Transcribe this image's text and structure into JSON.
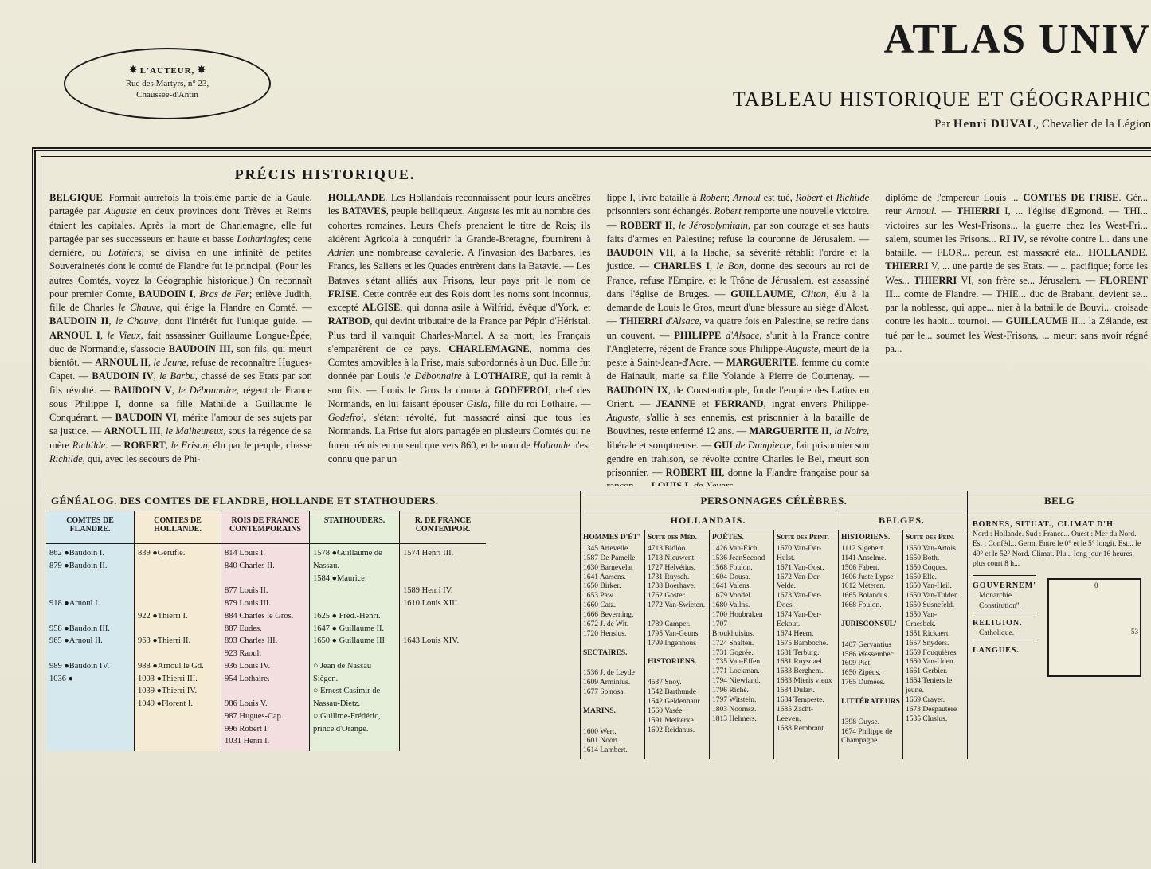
{
  "cartouche": {
    "line1": "L'AUTEUR,",
    "line2": "Rue des Martyrs, n° 23,",
    "line3": "Chaussée-d'Antin"
  },
  "main_title": "ATLAS UNIV",
  "subtitle": "TABLEAU HISTORIQUE ET GÉOGRAPHIC",
  "author_prefix": "Par ",
  "author_name": "Henri DUVAL",
  "author_suffix": ", Chevalier de la Légion",
  "precis_title": "PRÉCIS HISTORIQUE.",
  "col1": "BELGIQUE. Formait autrefois la troisième partie de la Gaule, partagée par Auguste en deux provinces dont Trèves et Reims étaient les capitales. Après la mort de Charlemagne, elle fut partagée par ses successeurs en haute et basse Lotharingies; cette dernière, ou Lothiers, se divisa en une infinité de petites Souverainetés dont le comté de Flandre fut le principal. (Pour les autres Comtés, voyez la Géographie historique.) On reconnaît pour premier Comte, BAUDOIN I, Bras de Fer; enlève Judith, fille de Charles le Chauve, qui érige la Flandre en Comté. — BAUDOIN II, le Chauve, dont l'intérêt fut l'unique guide. — ARNOUL I, le Vieux, fait assassiner Guillaume Longue-Épée, duc de Normandie, s'associe BAUDOIN III, son fils, qui meurt bientôt. — ARNOUL II, le Jeune, refuse de reconnaître Hugues-Capet. — BAUDOIN IV, le Barbu, chassé de ses Etats par son fils révolté. — BAUDOIN V, le Débonnaire, régent de France sous Philippe I, donne sa fille Mathilde à Guillaume le Conquérant. — BAUDOIN VI, mérite l'amour de ses sujets par sa justice. — ARNOUL III, le Malheureux, sous la régence de sa mère Richilde. — ROBERT, le Frison, élu par le peuple, chasse Richilde, qui, avec les secours de Phi-",
  "col2": "HOLLANDE. Les Hollandais reconnaissent pour leurs ancêtres les BATAVES, peuple belliqueux. Auguste les mit au nombre des cohortes romaines. Leurs Chefs prenaient le titre de Rois; ils aidèrent Agricola à conquérir la Grande-Bretagne, fournirent à Adrien une nombreuse cavalerie. A l'invasion des Barbares, les Francs, les Saliens et les Quades entrèrent dans la Batavie. — Les Bataves s'étant alliés aux Frisons, leur pays prit le nom de FRISE. Cette contrée eut des Rois dont les noms sont inconnus, excepté ALGISE, qui donna asile à Wilfrid, évêque d'York, et RATBOD, qui devint tributaire de la France par Pépin d'Héristal. Plus tard il vainquit Charles-Martel. A sa mort, les Français s'emparèrent de ce pays. CHARLEMAGNE, nomma des Comtes amovibles à la Frise, mais subordonnés à un Duc. Elle fut donnée par Louis le Débonnaire à LOTHAIRE, qui la remit à son fils. — Louis le Gros la donna à GODEFROI, chef des Normands, en lui faisant épouser Gisla, fille du roi Lothaire. — Godefroi, s'étant révolté, fut massacré ainsi que tous les Normands. La Frise fut alors partagée en plusieurs Comtés qui ne furent réunis en un seul que vers 860, et le nom de Hollande n'est connu que par un",
  "col3": "lippe I, livre bataille à Robert; Arnoul est tué, Robert et Richilde prisonniers sont échangés. Robert remporte une nouvelle victoire. — ROBERT II, le Jérosolymitain, par son courage et ses hauts faits d'armes en Palestine; refuse la couronne de Jérusalem. — BAUDOIN VII, à la Hache, sa sévérité rétablit l'ordre et la justice. — CHARLES I, le Bon, donne des secours au roi de France, refuse l'Empire, et le Trône de Jérusalem, est assassiné dans l'église de Bruges. — GUILLAUME, Cliton, élu à la demande de Louis le Gros, meurt d'une blessure au siège d'Alost. — THIERRI d'Alsace, va quatre fois en Palestine, se retire dans un couvent. — PHILIPPE d'Alsace, s'unit à la France contre l'Angleterre, régent de France sous Philippe-Auguste, meurt de la peste à Saint-Jean-d'Acre. — MARGUERITE, femme du comte de Hainault, marie sa fille Yolande à Pierre de Courtenay. — BAUDOIN IX, de Constantinople, fonde l'empire des Latins en Orient. — JEANNE et FERRAND, ingrat envers Philippe-Auguste, s'allie à ses ennemis, est prisonnier à la bataille de Bouvines, reste enfermé 12 ans. — MARGUERITE II, la Noire, libérale et somptueuse. — GUI de Dampierre, fait prisonnier son gendre en trahison, se révolte contre Charles le Bel, meurt son prisonnier. — ROBERT III, donne la Flandre française pour sa rançon. — LOUIS I, de Nevers,",
  "col4": "diplôme de l'empereur Louis ... COMTES DE FRISE. Gér... reur Arnoul. — THIERRI I, ... l'église d'Egmond. — THI... victoires sur les West-Frisons... la guerre chez les West-Fri... salem, soumet les Frisons... RI IV, se révolte contre l... dans une bataille. — FLOR... pereur, est massacré éta... HOLLANDE. THIERRI V, ... une partie de ses Etats. — ... pacifique; force les Wes... THIERRI VI, son frère se... Jérusalem. — FLORENT II... comte de Flandre. — THIE... duc de Brabant, devient se... par la noblesse, qui appe... nier à la bataille de Bouvi... croisade contre les habit... tournoi. — GUILLAUME II... la Zélande, est tué par le... soumet les West-Frisons, ... meurt sans avoir régné pa...",
  "genealog": {
    "title": "GÉNÉALOG. DES COMTES DE FLANDRE, HOLLANDE ET STATHOUDERS.",
    "flandre": {
      "head": "COMTES DE FLANDRE.",
      "rows": "862   ●Baudoin I.\n879   ●Baudoin II.\n\n\n918   ●Arnoul I.\n\n958   ●Baudoin III.\n965   ●Arnoul II.\n\n989   ●Baudoin IV.\n1036   ●"
    },
    "hollande": {
      "head": "COMTES DE HOLLANDE.",
      "rows": "839   ●Gérufle.\n\n\n\n\n922   ●Thierri I.\n\n963   ●Thierri II.\n\n988   ●Arnoul le Gd.\n1003   ●Thierri III.\n1039   ●Thierri IV.\n1049   ●Florent I."
    },
    "rois1": {
      "head": "ROIS DE FRANCE CONTEMPORAINS",
      "rows": "814 Louis I.\n840 Charles II.\n\n877 Louis II.\n879 Louis III.\n884 Charles le Gros.\n887 Eudes.\n893 Charles III.\n923 Raoul.\n936 Louis IV.\n954 Lothaire.\n\n986 Louis V.\n987 Hugues-Cap.\n996 Robert I.\n1031 Henri I."
    },
    "stathouders": {
      "head": "STATHOUDERS.",
      "rows": "1578 ●Guillaume de Nassau.\n1584 ●Maurice.\n\n\n1625 ● Fréd.-Henri.\n1647 ● Guillaume II.\n1650 ● Guillaume III\n\n      ○ Jean de Nassau Siègen.\n      ○ Ernest Casimir de Nassau-Dietz.\n      ○ Guillme-Frédéric, prince d'Orange."
    },
    "rois2": {
      "head": "R. DE FRANCE CONTEMPOR.",
      "rows": "1574 Henri III.\n\n\n1589 Henri IV.\n1610 Louis XIII.\n\n\n1643 Louis XIV."
    }
  },
  "personnages": {
    "title": "PERSONNAGES CÉLÈBRES.",
    "hollandais_head": "HOLLANDAIS.",
    "belges_head": "BELGES.",
    "cols": [
      {
        "head": "HOMMES D'ÉT'",
        "body": "1345 Artevelle.\n1587 De Pamelle\n1630 Barnevelat\n1641 Aarsens.\n1650 Birker.\n1653 Paw.\n1660 Catz.\n1666 Beverning.\n1672 J. de Wit.\n1720 Hensius.\n\nSECTAIRES.\n1536 J. de Leyde\n1609 Arminius.\n1677 Sp'nosa.\n\nMARINS.\n1600 Wert.\n1601 Noort.\n1614 Lambert."
      },
      {
        "head": "Suite des Méd.",
        "body": "4713 Bidloo.\n1718 Nieuwent.\n1727 Helvétius.\n1731 Ruysch.\n1738 Boerhave.\n1762 Goster.\n1772 Van-Swieten.\n\n1789 Camper.\n1795 Van-Geuns\n1799 Ingenhous\n\nHISTORIENS.\n4537 Snoy.\n1542 Barthunde\n1542 Geldenhaur\n1560 Vasée.\n1591 Metkerke.\n1602 Reidanus."
      },
      {
        "head": "POÈTES.",
        "body": "1426 Van-Eich.\n1536 JeanSecond\n1568 Foulon.\n1604 Dousa.\n1641 Valens.\n1679 Vondel.\n1680 Vallns.\n1700 Houbraken\n1707 Broukhuisius.\n1724 Shalten.\n1731 Gogrée.\n1735 Van-Effen.\n1771 Lockman.\n1794 Niewland.\n1796 Riché.\n1797 Witstein.\n1803 Noomsz.\n1813 Helmers."
      },
      {
        "head": "Suite des Peint.",
        "body": "1670 Van-Der-Hulst.\n1671 Van-Oost.\n1672 Van-Der-Velde.\n1673 Van-Der-Does.\n1674 Van-Der-Eckout.\n1674 Heem.\n1675 Bamboche.\n1681 Terburg.\n1681 Ruysdael.\n1683 Berghem.\n1683 Mieris vieux\n1684 Dulart.\n1684 Tempeste.\n1685 Zacht-Leeven.\n1688 Rembrant."
      },
      {
        "head": "HISTORIENS.",
        "body": "1112 Sigebert.\n1141 Anselme.\n1506 Fabert.\n1606 Juste Lypse\n1612 Méteren.\n1665 Bolandus.\n1668 Foulon.\n\nJURISCONSUL'\n1407 Gervantius\n1586 Wessembec\n1609 Piet.\n1650 Zipéus.\n1765 Dumées.\n\nLITTÉRATEURS\n1398 Guyse.\n1674 Philippe de Champagne."
      },
      {
        "head": "Suite des Pein.",
        "body": "1650 Van-Artois\n1650 Both.\n1650 Coques.\n1650 Elle.\n1650 Van-Heil.\n1650 Van-Tulden.\n1650 Susnefeld.\n1650 Van-Craesbek.\n1651 Rickaert.\n1657 Snyders.\n1659 Fouquières\n1660 Van-Uden.\n1661 Gerbier.\n1664 Teniers le jeune.\n1669 Crayer.\n1673 Despautère\n1535 Clusius."
      }
    ]
  },
  "belgique": {
    "title": "BELG",
    "bornes_head": "BORNES, SITUAT., CLIMAT D'H",
    "bornes_body": "Nord : Hollande. Sud : France... Ouest : Mer du Nord. Est : Conféd... Germ. Entre le 0° et le 5° longit. Est... le 49° et le 52° Nord. Climat. Plu... long jour 16 heures, plus court 8 h...",
    "gouvern_head": "GOUVERNEM'",
    "gouvern_val": "Monarchie Constitution''.",
    "religion_head": "RELIGION.",
    "religion_val": "Catholique.",
    "langues_head": "LANGUES.",
    "map_coord_top": "0",
    "map_coord_right": "53"
  },
  "colors": {
    "paper": "#e8e4d4",
    "ink": "#1a1a1a",
    "flandre_bg": "#d4e8ed",
    "hollande_bg": "#f5ead4",
    "rois_bg": "#f3dfe0",
    "stath_bg": "#e4eed8"
  }
}
